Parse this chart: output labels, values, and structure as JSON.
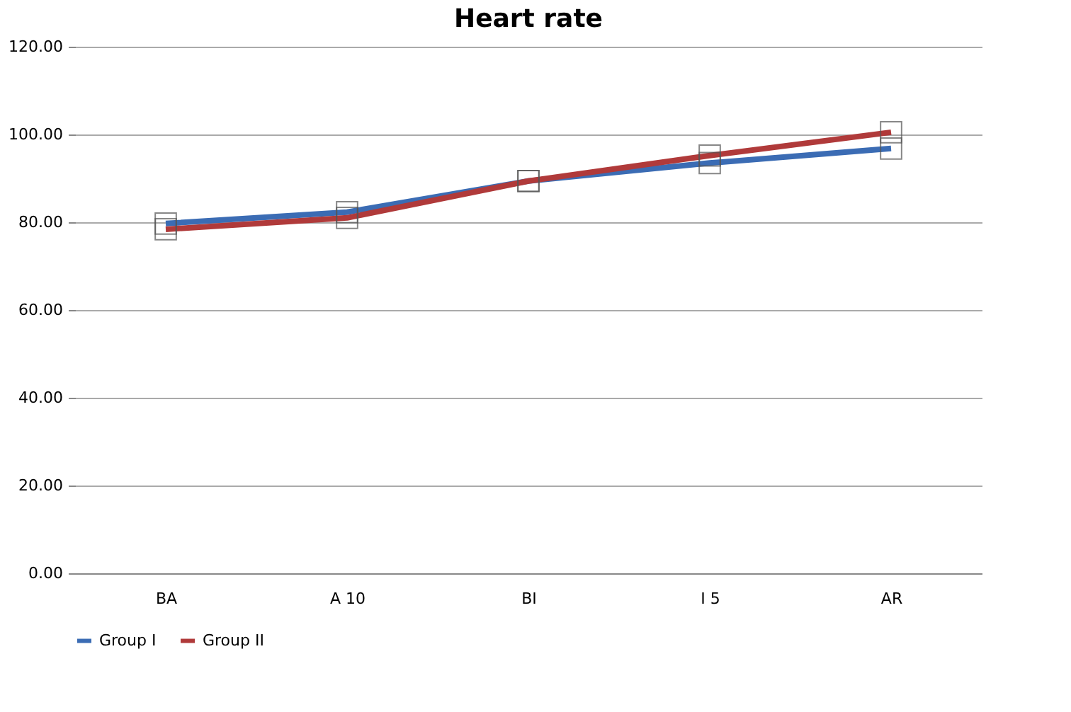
{
  "chart_data": {
    "type": "line",
    "title": "Heart rate",
    "categories": [
      "BA",
      "A 10",
      "BI",
      "I 5",
      "AR"
    ],
    "series": [
      {
        "name": "Group I",
        "color": "#3b6cb4",
        "values": [
          79.7,
          82.3,
          89.4,
          93.5,
          96.8
        ]
      },
      {
        "name": "Group II",
        "color": "#b03a3a",
        "values": [
          78.4,
          81.0,
          89.4,
          95.2,
          100.5
        ]
      }
    ],
    "ylim": [
      0,
      120
    ],
    "yticks": [
      {
        "value": 0,
        "label": "0.00"
      },
      {
        "value": 20,
        "label": "20.00"
      },
      {
        "value": 40,
        "label": "40.00"
      },
      {
        "value": 60,
        "label": "60.00"
      },
      {
        "value": 80,
        "label": "80.00"
      },
      {
        "value": 100,
        "label": "100.00"
      },
      {
        "value": 120,
        "label": "120.00"
      }
    ],
    "grid": "y",
    "legend": "bottom",
    "marker": "square",
    "line_style": "solid"
  }
}
